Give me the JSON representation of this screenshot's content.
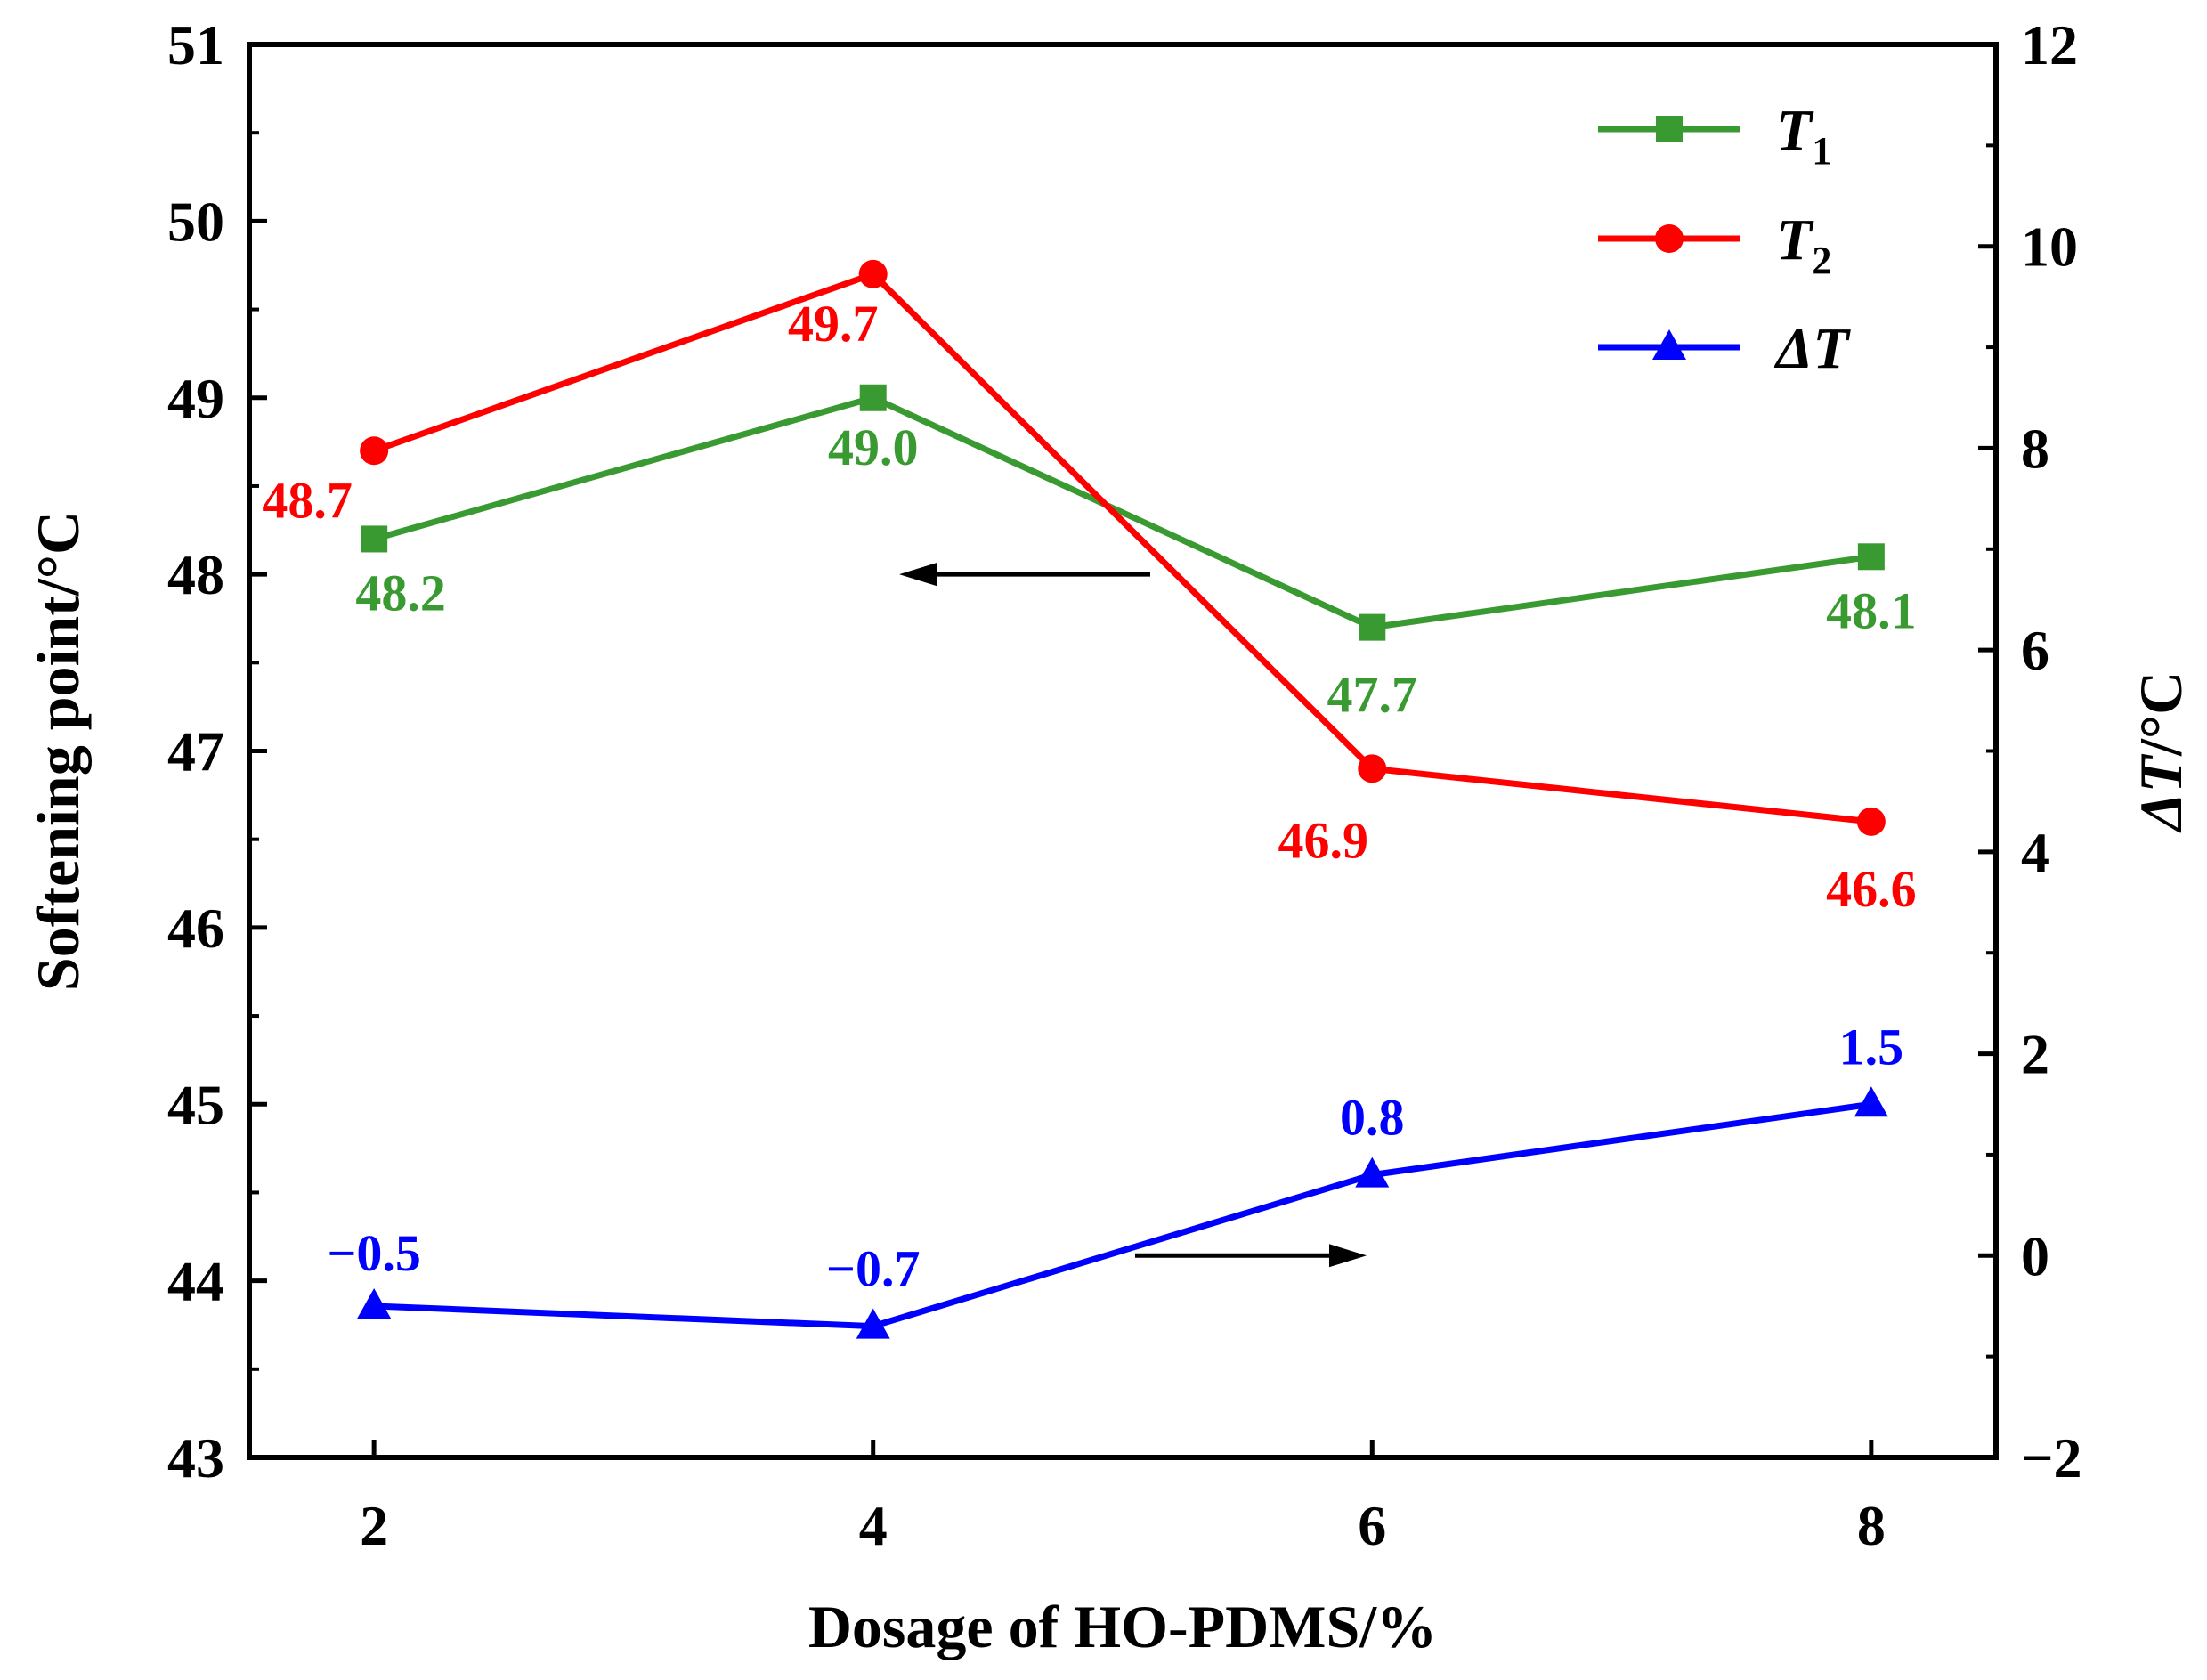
{
  "chart_data": {
    "type": "line",
    "title": "",
    "xlabel": "Dosage of HO-PDMS/%",
    "ylabel": "Softening point/°C",
    "y2label_symbol": "ΔT",
    "y2label_unit": "/°C",
    "x": [
      2,
      4,
      6,
      8
    ],
    "xlim": [
      1.5,
      8.5
    ],
    "ylim": [
      43,
      51
    ],
    "y2lim": [
      -2,
      12
    ],
    "x_ticks": [
      "2",
      "4",
      "6",
      "8"
    ],
    "y_ticks": [
      "43",
      "44",
      "45",
      "46",
      "47",
      "48",
      "49",
      "50",
      "51"
    ],
    "y2_ticks": [
      "−2",
      "0",
      "2",
      "4",
      "6",
      "8",
      "10",
      "12"
    ],
    "legend_position": "top-right",
    "series": [
      {
        "name": "T1",
        "legend_symbol": "T",
        "legend_sub": "1",
        "axis": "left",
        "color": "#3a9a32",
        "marker": "square",
        "values": [
          48.2,
          49.0,
          47.7,
          48.1
        ],
        "labels": [
          "48.2",
          "49.0",
          "47.7",
          "48.1"
        ]
      },
      {
        "name": "T2",
        "legend_symbol": "T",
        "legend_sub": "2",
        "axis": "left",
        "color": "#ff0000",
        "marker": "circle",
        "values": [
          48.7,
          49.7,
          46.9,
          46.6
        ],
        "labels": [
          "48.7",
          "49.7",
          "46.9",
          "46.6"
        ]
      },
      {
        "name": "ΔT",
        "legend_symbol": "ΔT",
        "legend_sub": "",
        "axis": "right",
        "color": "#0000ff",
        "marker": "triangle",
        "values": [
          -0.5,
          -0.7,
          0.8,
          1.5
        ],
        "labels": [
          "−0.5",
          "−0.7",
          "0.8",
          "1.5"
        ]
      }
    ],
    "annotations": [
      {
        "type": "arrow",
        "direction": "left",
        "points_to": "left axis (T1, T2)"
      },
      {
        "type": "arrow",
        "direction": "right",
        "points_to": "right axis (ΔT)"
      }
    ]
  }
}
